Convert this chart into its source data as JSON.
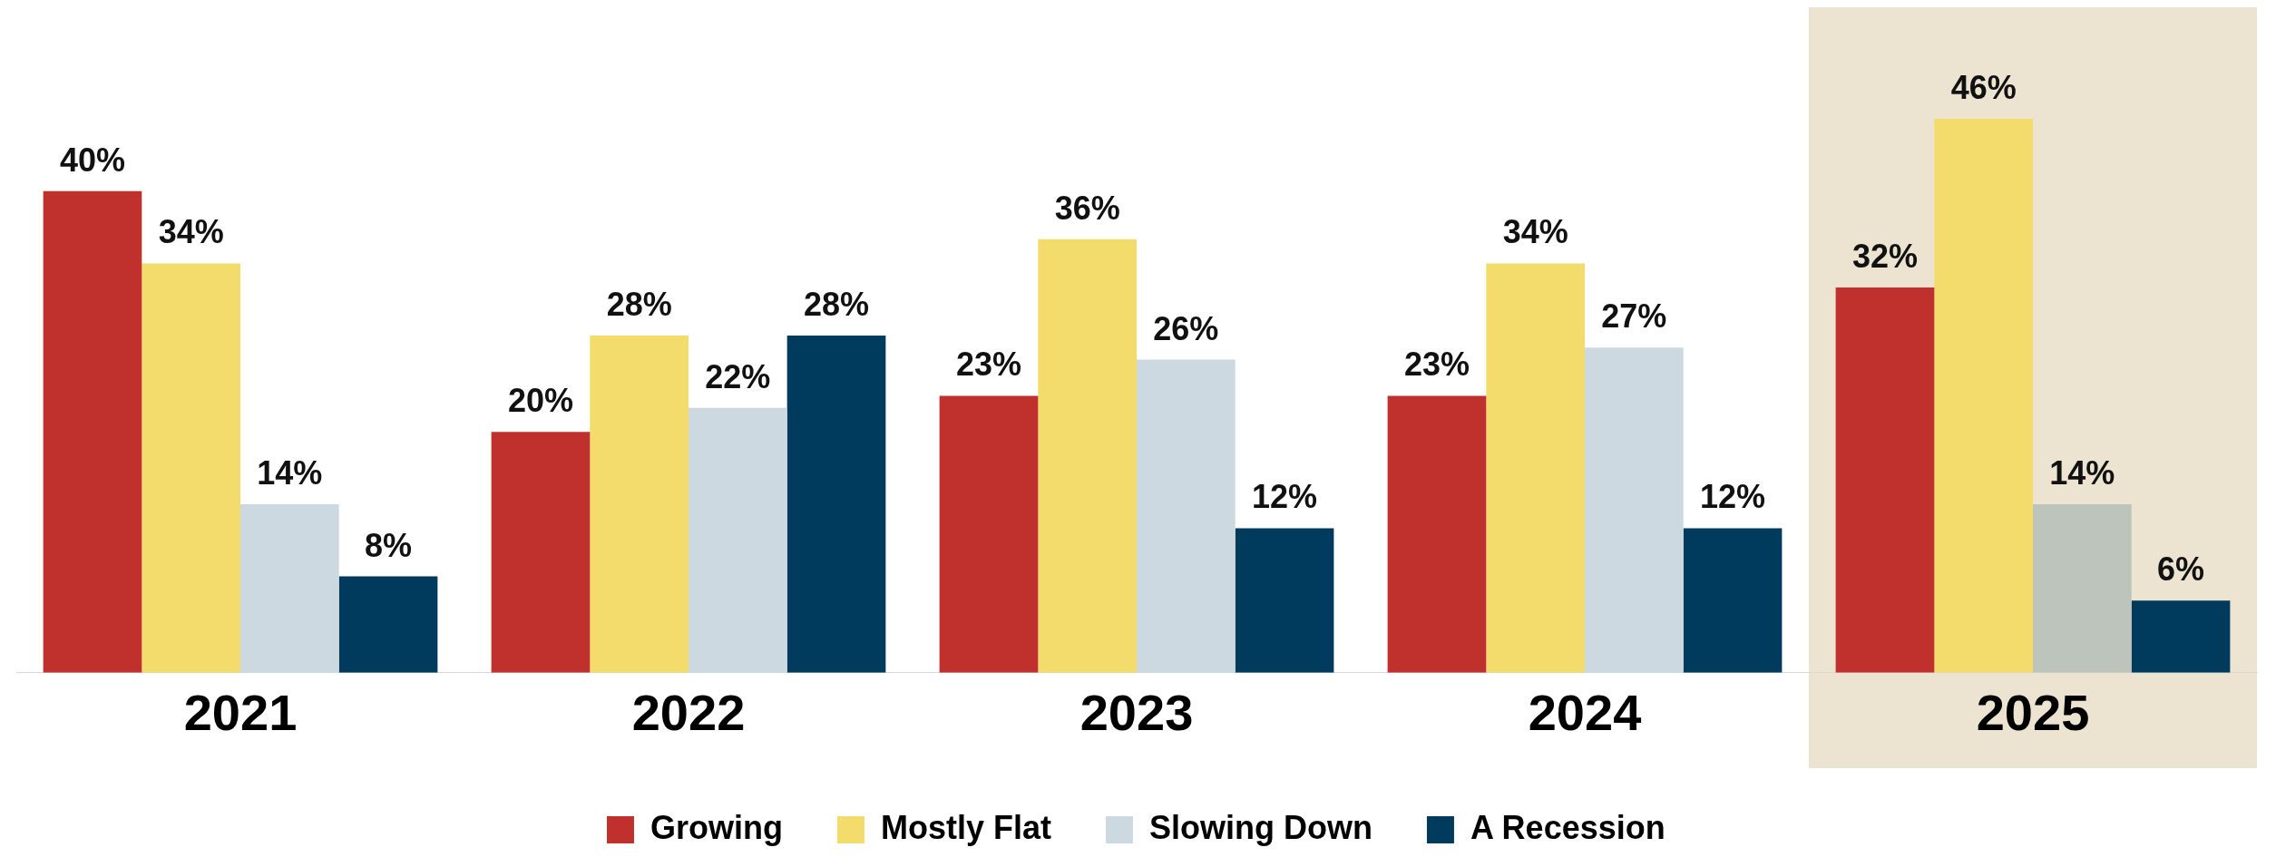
{
  "chart_data": {
    "type": "bar",
    "categories": [
      "2021",
      "2022",
      "2023",
      "2024",
      "2025"
    ],
    "series": [
      {
        "name": "Growing",
        "color": "#c0302c",
        "values": [
          40,
          20,
          23,
          23,
          32
        ],
        "value_labels": [
          "40%",
          "20%",
          "23%",
          "23%",
          "32%"
        ]
      },
      {
        "name": "Mostly Flat",
        "color": "#f4dc6c",
        "values": [
          34,
          28,
          36,
          34,
          46
        ],
        "value_labels": [
          "34%",
          "28%",
          "36%",
          "34%",
          "46%"
        ]
      },
      {
        "name": "Slowing Down",
        "color": "#ccd9e0",
        "colors": [
          "#ccd9e0",
          "#ccd9e0",
          "#ccd9e0",
          "#ccd9e0",
          "#bcc4bb"
        ],
        "values": [
          14,
          22,
          26,
          27,
          14
        ],
        "value_labels": [
          "14%",
          "22%",
          "26%",
          "27%",
          "14%"
        ]
      },
      {
        "name": "A Recession",
        "color": "#003a5c",
        "values": [
          8,
          28,
          12,
          12,
          6
        ],
        "value_labels": [
          "8%",
          "28%",
          "12%",
          "12%",
          "6%"
        ]
      }
    ],
    "grid": false,
    "legend": "bottom",
    "bands": [
      {
        "axis": "x",
        "from": "2025",
        "to": "2025",
        "color": "#ece3d0"
      }
    ]
  }
}
